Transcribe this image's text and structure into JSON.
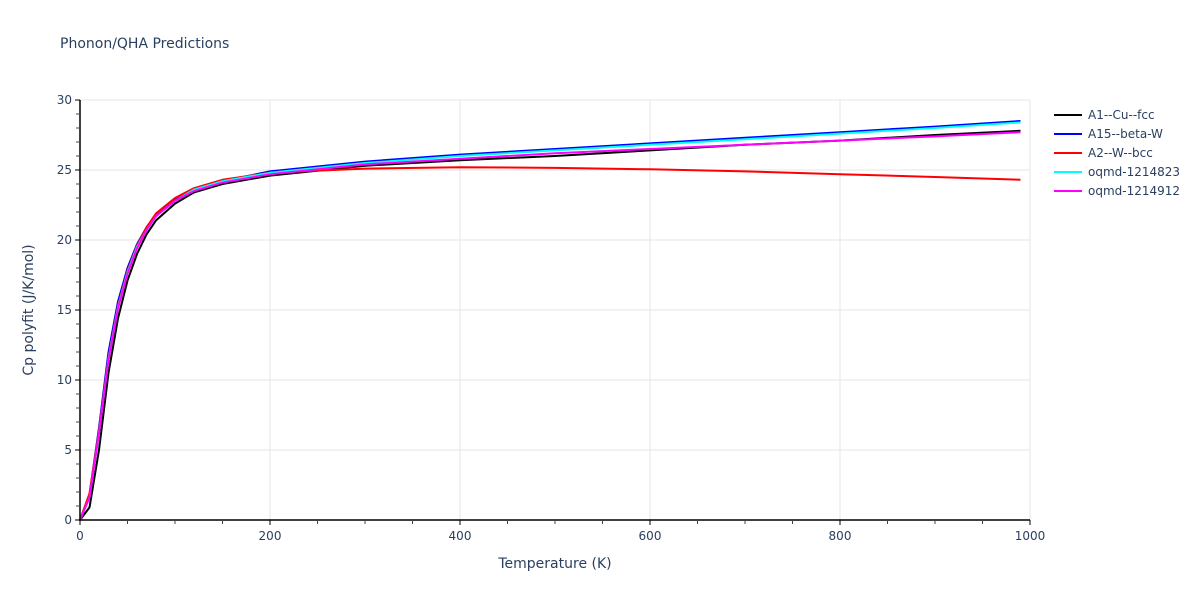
{
  "chart_data": {
    "type": "line",
    "title": "Phonon/QHA Predictions",
    "xlabel": "Temperature (K)",
    "ylabel": "Cp polyfit (J/K/mol)",
    "xlim": [
      0,
      1000
    ],
    "ylim": [
      0,
      30
    ],
    "xticks": [
      0,
      200,
      400,
      600,
      800,
      1000
    ],
    "yticks": [
      0,
      5,
      10,
      15,
      20,
      25,
      30
    ],
    "grid": true,
    "legend_position": "right",
    "series": [
      {
        "name": "A1--Cu--fcc",
        "color": "#000000",
        "x": [
          0,
          10,
          20,
          30,
          40,
          50,
          60,
          70,
          80,
          100,
          120,
          150,
          200,
          300,
          400,
          500,
          600,
          700,
          800,
          900,
          990
        ],
        "y": [
          0,
          0.9,
          5.0,
          10.5,
          14.4,
          17.1,
          19.0,
          20.4,
          21.4,
          22.6,
          23.4,
          24.0,
          24.6,
          25.3,
          25.7,
          26.0,
          26.4,
          26.8,
          27.1,
          27.5,
          27.8
        ]
      },
      {
        "name": "A15--beta-W",
        "color": "#0000ff",
        "x": [
          0,
          10,
          20,
          30,
          40,
          50,
          60,
          70,
          80,
          100,
          120,
          150,
          200,
          300,
          400,
          500,
          600,
          700,
          800,
          900,
          990
        ],
        "y": [
          0,
          1.8,
          6.6,
          12.0,
          15.6,
          18.0,
          19.7,
          20.9,
          21.8,
          22.9,
          23.6,
          24.2,
          24.9,
          25.6,
          26.1,
          26.5,
          26.9,
          27.3,
          27.7,
          28.1,
          28.5
        ]
      },
      {
        "name": "A2--W--bcc",
        "color": "#ff0000",
        "x": [
          0,
          10,
          20,
          30,
          40,
          50,
          60,
          70,
          80,
          100,
          120,
          150,
          200,
          300,
          400,
          500,
          600,
          700,
          800,
          900,
          990
        ],
        "y": [
          0,
          1.9,
          6.4,
          11.6,
          15.3,
          17.8,
          19.6,
          20.9,
          21.9,
          23.0,
          23.7,
          24.3,
          24.8,
          25.1,
          25.2,
          25.15,
          25.05,
          24.9,
          24.7,
          24.5,
          24.3
        ]
      },
      {
        "name": "oqmd-1214823",
        "color": "#00ffff",
        "x": [
          0,
          10,
          20,
          30,
          40,
          50,
          60,
          70,
          80,
          100,
          120,
          150,
          200,
          300,
          400,
          500,
          600,
          700,
          800,
          900,
          990
        ],
        "y": [
          0,
          1.6,
          6.2,
          11.5,
          15.2,
          17.7,
          19.5,
          20.7,
          21.7,
          22.8,
          23.6,
          24.2,
          24.8,
          25.5,
          26.0,
          26.4,
          26.8,
          27.2,
          27.6,
          28.0,
          28.4
        ]
      },
      {
        "name": "oqmd-1214912",
        "color": "#ff00ff",
        "x": [
          0,
          10,
          20,
          30,
          40,
          50,
          60,
          70,
          80,
          100,
          120,
          150,
          200,
          300,
          400,
          500,
          600,
          700,
          800,
          900,
          990
        ],
        "y": [
          0,
          1.6,
          6.2,
          11.4,
          15.1,
          17.6,
          19.4,
          20.7,
          21.7,
          22.8,
          23.5,
          24.1,
          24.7,
          25.4,
          25.8,
          26.2,
          26.5,
          26.8,
          27.1,
          27.4,
          27.7
        ]
      }
    ]
  }
}
